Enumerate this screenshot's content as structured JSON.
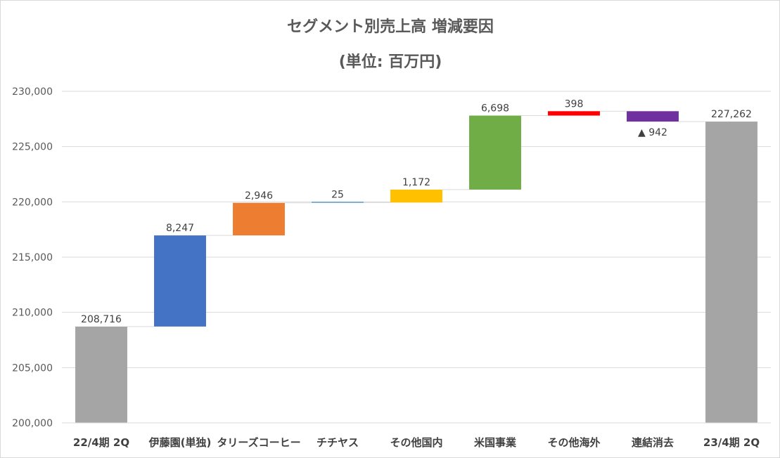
{
  "chart_data": {
    "type": "waterfall",
    "title": "セグメント別売上高 増減要因",
    "subtitle": "(単位: 百万円)",
    "categories": [
      "22/4期 2Q",
      "伊藤園(単独)",
      "タリーズコーヒー",
      "チチヤス",
      "その他国内",
      "米国事業",
      "その他海外",
      "連結消去",
      "23/4期 2Q"
    ],
    "values": [
      208716,
      8247,
      2946,
      25,
      1172,
      6698,
      398,
      -942,
      227262
    ],
    "kinds": [
      "total",
      "delta",
      "delta",
      "delta",
      "delta",
      "delta",
      "delta",
      "delta",
      "total"
    ],
    "labels": [
      "208,716",
      "8,247",
      "2,946",
      "25",
      "1,172",
      "6,698",
      "398",
      "▲ 942",
      "227,262"
    ],
    "colors": [
      "#a5a5a5",
      "#4472c4",
      "#ed7d31",
      "#5b9bd5",
      "#ffc000",
      "#70ad47",
      "#ff0000",
      "#7030a0",
      "#a5a5a5"
    ],
    "yticks": [
      "200,000",
      "205,000",
      "210,000",
      "215,000",
      "220,000",
      "225,000",
      "230,000"
    ],
    "ylim": [
      200000,
      230000
    ],
    "grid": true,
    "legend": "none"
  }
}
